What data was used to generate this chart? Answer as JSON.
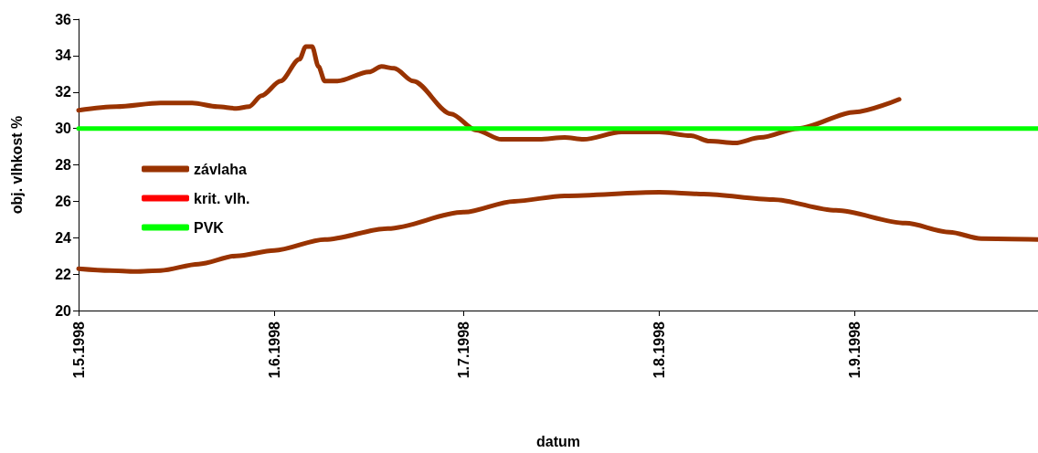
{
  "chart_data": {
    "type": "line",
    "xlabel": "datum",
    "ylabel": "obj. vlhkost %",
    "xlim": [
      "1998-05-01",
      "1998-09-30"
    ],
    "xticks": [
      {
        "value": "1998-05-01",
        "label": "1.5.1998"
      },
      {
        "value": "1998-06-01",
        "label": "1.6.1998"
      },
      {
        "value": "1998-07-01",
        "label": "1.7.1998"
      },
      {
        "value": "1998-08-01",
        "label": "1.8.1998"
      },
      {
        "value": "1998-09-01",
        "label": "1.9.1998"
      }
    ],
    "ylim": [
      20,
      36
    ],
    "yticks": [
      20,
      22,
      24,
      26,
      28,
      30,
      32,
      34,
      36
    ],
    "grid": false,
    "legend": "left",
    "marker": "none",
    "line_style": "solid",
    "series": [
      {
        "name": "závlaha",
        "color": "#993300",
        "x": [
          "1998-05-01",
          "1998-05-07",
          "1998-05-14",
          "1998-05-19",
          "1998-05-23",
          "1998-05-26",
          "1998-05-28",
          "1998-05-30",
          "1998-06-02",
          "1998-06-05",
          "1998-06-06",
          "1998-06-07",
          "1998-06-08",
          "1998-06-09",
          "1998-06-11",
          "1998-06-16",
          "1998-06-18",
          "1998-06-20",
          "1998-06-23",
          "1998-06-29",
          "1998-07-03",
          "1998-07-07",
          "1998-07-13",
          "1998-07-17",
          "1998-07-20",
          "1998-07-26",
          "1998-08-01",
          "1998-08-06",
          "1998-08-09",
          "1998-08-13",
          "1998-08-17",
          "1998-08-23",
          "1998-09-01",
          "1998-09-08"
        ],
        "values": [
          31.0,
          31.2,
          31.4,
          31.4,
          31.2,
          31.1,
          31.2,
          31.8,
          32.6,
          33.8,
          34.5,
          34.5,
          33.4,
          32.6,
          32.6,
          33.1,
          33.4,
          33.3,
          32.6,
          30.8,
          29.9,
          29.4,
          29.4,
          29.5,
          29.4,
          29.8,
          29.8,
          29.6,
          29.3,
          29.2,
          29.5,
          30.0,
          30.9,
          31.6
        ]
      },
      {
        "name": "krit. vlh.",
        "color": "#ff0000"
      },
      {
        "name": "PVK",
        "color": "#00ff00",
        "x": [
          "1998-05-01",
          "1998-09-30"
        ],
        "values": [
          30,
          30
        ]
      },
      {
        "color": "#993300",
        "x": [
          "1998-05-01",
          "1998-05-06",
          "1998-05-10",
          "1998-05-14",
          "1998-05-20",
          "1998-05-26",
          "1998-06-01",
          "1998-06-09",
          "1998-06-19",
          "1998-07-01",
          "1998-07-09",
          "1998-07-17",
          "1998-08-01",
          "1998-08-08",
          "1998-08-19",
          "1998-08-29",
          "1998-09-09",
          "1998-09-16",
          "1998-09-21",
          "1998-09-30"
        ],
        "values": [
          22.3,
          22.2,
          22.15,
          22.2,
          22.55,
          23.0,
          23.3,
          23.9,
          24.5,
          25.4,
          26.0,
          26.3,
          26.5,
          26.4,
          26.1,
          25.5,
          24.8,
          24.3,
          23.95,
          23.9
        ]
      }
    ]
  }
}
